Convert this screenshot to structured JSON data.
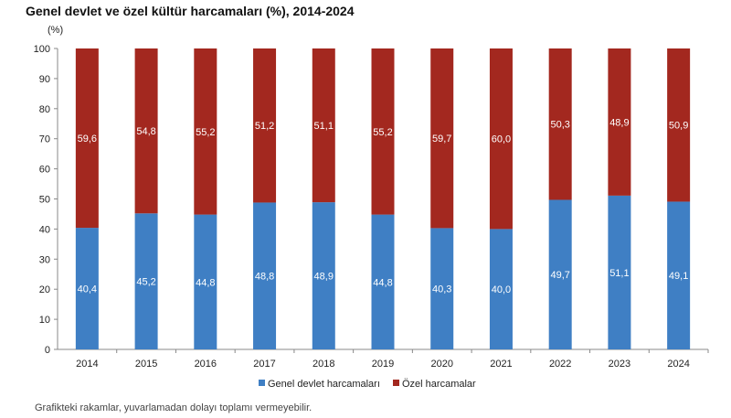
{
  "chart_data": {
    "type": "bar",
    "stacked": true,
    "title": "Genel devlet ve özel kültür harcamaları (%), 2014-2024",
    "ylabel": "(%)",
    "xlabel": "",
    "ylim": [
      0,
      100
    ],
    "yticks": [
      0,
      10,
      20,
      30,
      40,
      50,
      60,
      70,
      80,
      90,
      100
    ],
    "categories": [
      "2014",
      "2015",
      "2016",
      "2017",
      "2018",
      "2019",
      "2020",
      "2021",
      "2022",
      "2023",
      "2024"
    ],
    "series": [
      {
        "name": "Genel devlet harcamaları",
        "color": "#3f7fc4",
        "values": [
          40.4,
          45.2,
          44.8,
          48.8,
          48.9,
          44.8,
          40.3,
          40.0,
          49.7,
          51.1,
          49.1
        ],
        "labels": [
          "40,4",
          "45,2",
          "44,8",
          "48,8",
          "48,9",
          "44,8",
          "40,3",
          "40,0",
          "49,7",
          "51,1",
          "49,1"
        ]
      },
      {
        "name": "Özel harcamalar",
        "color": "#a3281f",
        "values": [
          59.6,
          54.8,
          55.2,
          51.2,
          51.1,
          55.2,
          59.7,
          60.0,
          50.3,
          48.9,
          50.9
        ],
        "labels": [
          "59,6",
          "54,8",
          "55,2",
          "51,2",
          "51,1",
          "55,2",
          "59,7",
          "60,0",
          "50,3",
          "48,9",
          "50,9"
        ]
      }
    ],
    "legend": "bottom",
    "grid": false
  },
  "footnote": "Grafikteki rakamlar, yuvarlamadan dolayı toplamı vermeyebilir."
}
